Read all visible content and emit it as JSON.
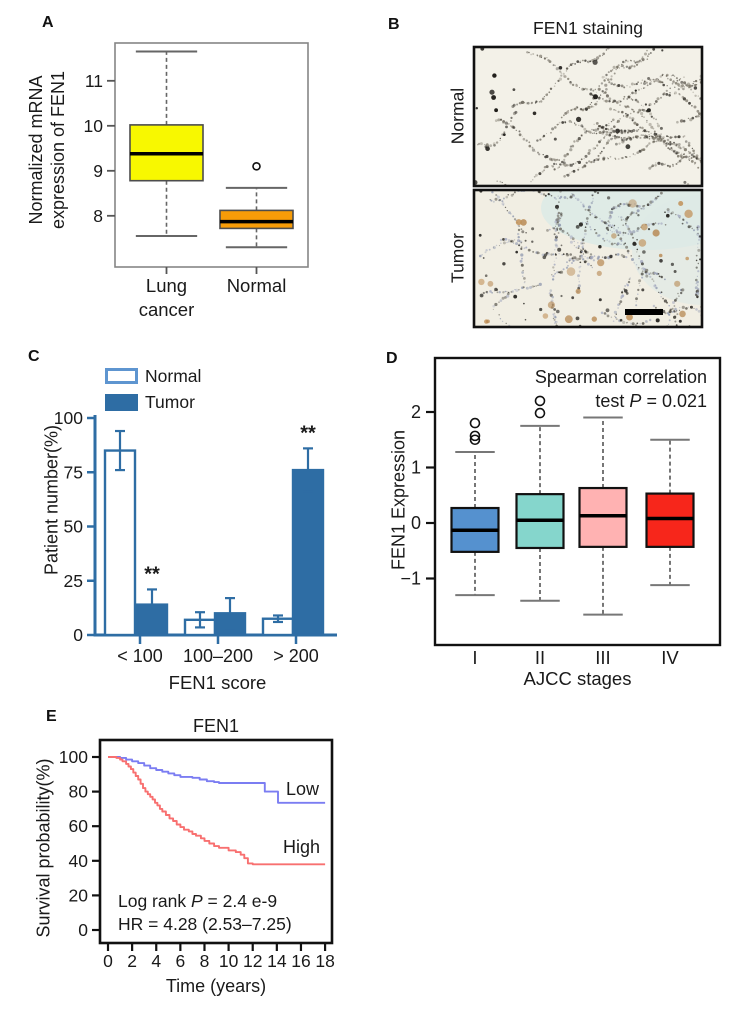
{
  "panels": {
    "a": {
      "label": "A"
    },
    "b": {
      "label": "B",
      "title": "FEN1 staining",
      "row_labels": [
        "Normal",
        "Tumor"
      ],
      "stain_colors": {
        "normal_background": "#f3f1e8",
        "tumor_background": "#f1eee3",
        "dark_stain": "#2e2b25",
        "brown_stain": "#c08f56",
        "slate_stain": "#8d96ad",
        "cyan_wash": "#ddeae6"
      }
    },
    "c": {
      "label": "C"
    },
    "d": {
      "label": "D",
      "annot_line1": "Spearman correlation",
      "annot_line2_pre": "test ",
      "annot_line2_p": "P",
      "annot_line2_post": " = 0.021"
    },
    "e": {
      "label": "E",
      "stats_line1_pre": "Log rank ",
      "stats_line1_p": "P",
      "stats_line1_post": " = 2.4 e-9",
      "stats_line2": "HR = 4.28 (2.53–7.25)"
    }
  },
  "chart_data": [
    {
      "panel": "A",
      "type": "boxplot",
      "ylabel": "Normalized mRNA expression of FEN1",
      "ylabel_lines": [
        "Normalized mRNA",
        "expression of FEN1"
      ],
      "categories": [
        "Lung cancer",
        "Normal"
      ],
      "category_lines": [
        [
          "Lung",
          "cancer"
        ],
        [
          "Normal"
        ]
      ],
      "yticks": [
        8,
        9,
        10,
        11
      ],
      "ylim": [
        6.9,
        11.85
      ],
      "boxes": [
        {
          "category": "Lung cancer",
          "fill": "#f8f800",
          "whisker_low": 7.55,
          "q1": 8.78,
          "median": 9.38,
          "q3": 10.02,
          "whisker_high": 11.65,
          "outliers": []
        },
        {
          "category": "Normal",
          "fill": "#f79c08",
          "whisker_low": 7.3,
          "q1": 7.72,
          "median": 7.87,
          "q3": 8.12,
          "whisker_high": 8.62,
          "outliers": [
            9.1
          ]
        }
      ]
    },
    {
      "panel": "C",
      "type": "bar",
      "ylabel": "Patient number(%)",
      "xlabel": "FEN1 score",
      "categories": [
        "< 100",
        "100–200",
        "> 200"
      ],
      "yticks": [
        0,
        25,
        50,
        75,
        100
      ],
      "ylim": [
        0,
        100
      ],
      "axis_color": "#2e6da4",
      "legend_border_color": "#5e95d0",
      "series": [
        {
          "name": "Normal",
          "fill": "#ffffff",
          "stroke": "#2e6da4",
          "values": [
            85,
            7,
            7.5
          ],
          "errors": [
            9,
            3.5,
            1.5
          ]
        },
        {
          "name": "Tumor",
          "fill": "#2e6da4",
          "stroke": "#2e6da4",
          "values": [
            14,
            10,
            76
          ],
          "errors": [
            7,
            7,
            10
          ]
        }
      ],
      "significance": [
        {
          "category": "< 100",
          "series": "Tumor",
          "label": "**"
        },
        {
          "category": "> 200",
          "series": "Tumor",
          "label": "**"
        }
      ]
    },
    {
      "panel": "D",
      "type": "boxplot",
      "ylabel": "FEN1 Expression",
      "xlabel": "AJCC stages",
      "annotation": "Spearman correlation test P = 0.021",
      "categories": [
        "I",
        "II",
        "III",
        "IV"
      ],
      "yticks": [
        -1,
        0,
        1,
        2
      ],
      "ylim": [
        -2.2,
        2.95
      ],
      "boxes": [
        {
          "category": "I",
          "fill": "#5591cf",
          "whisker_low": -1.3,
          "q1": -0.52,
          "median": -0.13,
          "q3": 0.27,
          "whisker_high": 1.28,
          "outliers": [
            1.5,
            1.57,
            1.8
          ]
        },
        {
          "category": "II",
          "fill": "#85d6cc",
          "whisker_low": -1.4,
          "q1": -0.45,
          "median": 0.05,
          "q3": 0.52,
          "whisker_high": 1.75,
          "outliers": [
            1.98,
            2.2
          ]
        },
        {
          "category": "III",
          "fill": "#ffb2b2",
          "whisker_low": -1.65,
          "q1": -0.43,
          "median": 0.13,
          "q3": 0.63,
          "whisker_high": 1.9,
          "outliers": []
        },
        {
          "category": "IV",
          "fill": "#f7261b",
          "whisker_low": -1.12,
          "q1": -0.43,
          "median": 0.08,
          "q3": 0.53,
          "whisker_high": 1.5,
          "outliers": []
        }
      ]
    },
    {
      "panel": "E",
      "type": "line",
      "title": "FEN1",
      "ylabel": "Survival probability(%)",
      "xlabel": "Time (years)",
      "xticks": [
        0,
        2,
        4,
        6,
        8,
        10,
        12,
        14,
        16,
        18
      ],
      "yticks": [
        0,
        20,
        40,
        60,
        80,
        100
      ],
      "xlim": [
        0,
        18
      ],
      "ylim": [
        0,
        100
      ],
      "stats": [
        "Log rank P = 2.4 e-9",
        "HR = 4.28 (2.53–7.25)"
      ],
      "series": [
        {
          "name": "Low",
          "color": "#7b7df2",
          "points": [
            [
              0,
              100
            ],
            [
              1,
              99.5
            ],
            [
              1.5,
              98.5
            ],
            [
              2,
              97.5
            ],
            [
              2.5,
              96.5
            ],
            [
              3,
              95
            ],
            [
              3.5,
              93.5
            ],
            [
              4,
              92.5
            ],
            [
              4.5,
              91.5
            ],
            [
              5,
              90.5
            ],
            [
              5.5,
              89.5
            ],
            [
              6,
              88.5
            ],
            [
              7,
              88
            ],
            [
              7.6,
              87
            ],
            [
              8.2,
              86
            ],
            [
              8.8,
              85.5
            ],
            [
              9.2,
              85
            ],
            [
              13,
              80
            ],
            [
              14.1,
              73.5
            ],
            [
              18,
              73.5
            ]
          ]
        },
        {
          "name": "High",
          "color": "#f87070",
          "points": [
            [
              0,
              100
            ],
            [
              0.7,
              99.5
            ],
            [
              1,
              98.5
            ],
            [
              1.2,
              97.5
            ],
            [
              1.5,
              96
            ],
            [
              1.7,
              94.5
            ],
            [
              1.9,
              93
            ],
            [
              2.1,
              91
            ],
            [
              2.3,
              89
            ],
            [
              2.5,
              87
            ],
            [
              2.7,
              84.5
            ],
            [
              2.9,
              82
            ],
            [
              3.1,
              80
            ],
            [
              3.3,
              78.5
            ],
            [
              3.5,
              77
            ],
            [
              3.7,
              75.5
            ],
            [
              3.9,
              73.5
            ],
            [
              4.1,
              72
            ],
            [
              4.3,
              70
            ],
            [
              4.5,
              68.5
            ],
            [
              4.8,
              66.5
            ],
            [
              5.1,
              64.5
            ],
            [
              5.4,
              63
            ],
            [
              5.7,
              61
            ],
            [
              6,
              59.5
            ],
            [
              6.3,
              58
            ],
            [
              6.7,
              57
            ],
            [
              7,
              55.5
            ],
            [
              7.3,
              54.5
            ],
            [
              7.7,
              53
            ],
            [
              8,
              51.5
            ],
            [
              8.4,
              50
            ],
            [
              8.8,
              48.5
            ],
            [
              9.2,
              47.5
            ],
            [
              10,
              46
            ],
            [
              10.6,
              45
            ],
            [
              11,
              43.5
            ],
            [
              11.3,
              41.5
            ],
            [
              11.6,
              38.5
            ],
            [
              12,
              38
            ],
            [
              18,
              38
            ]
          ]
        }
      ]
    }
  ]
}
